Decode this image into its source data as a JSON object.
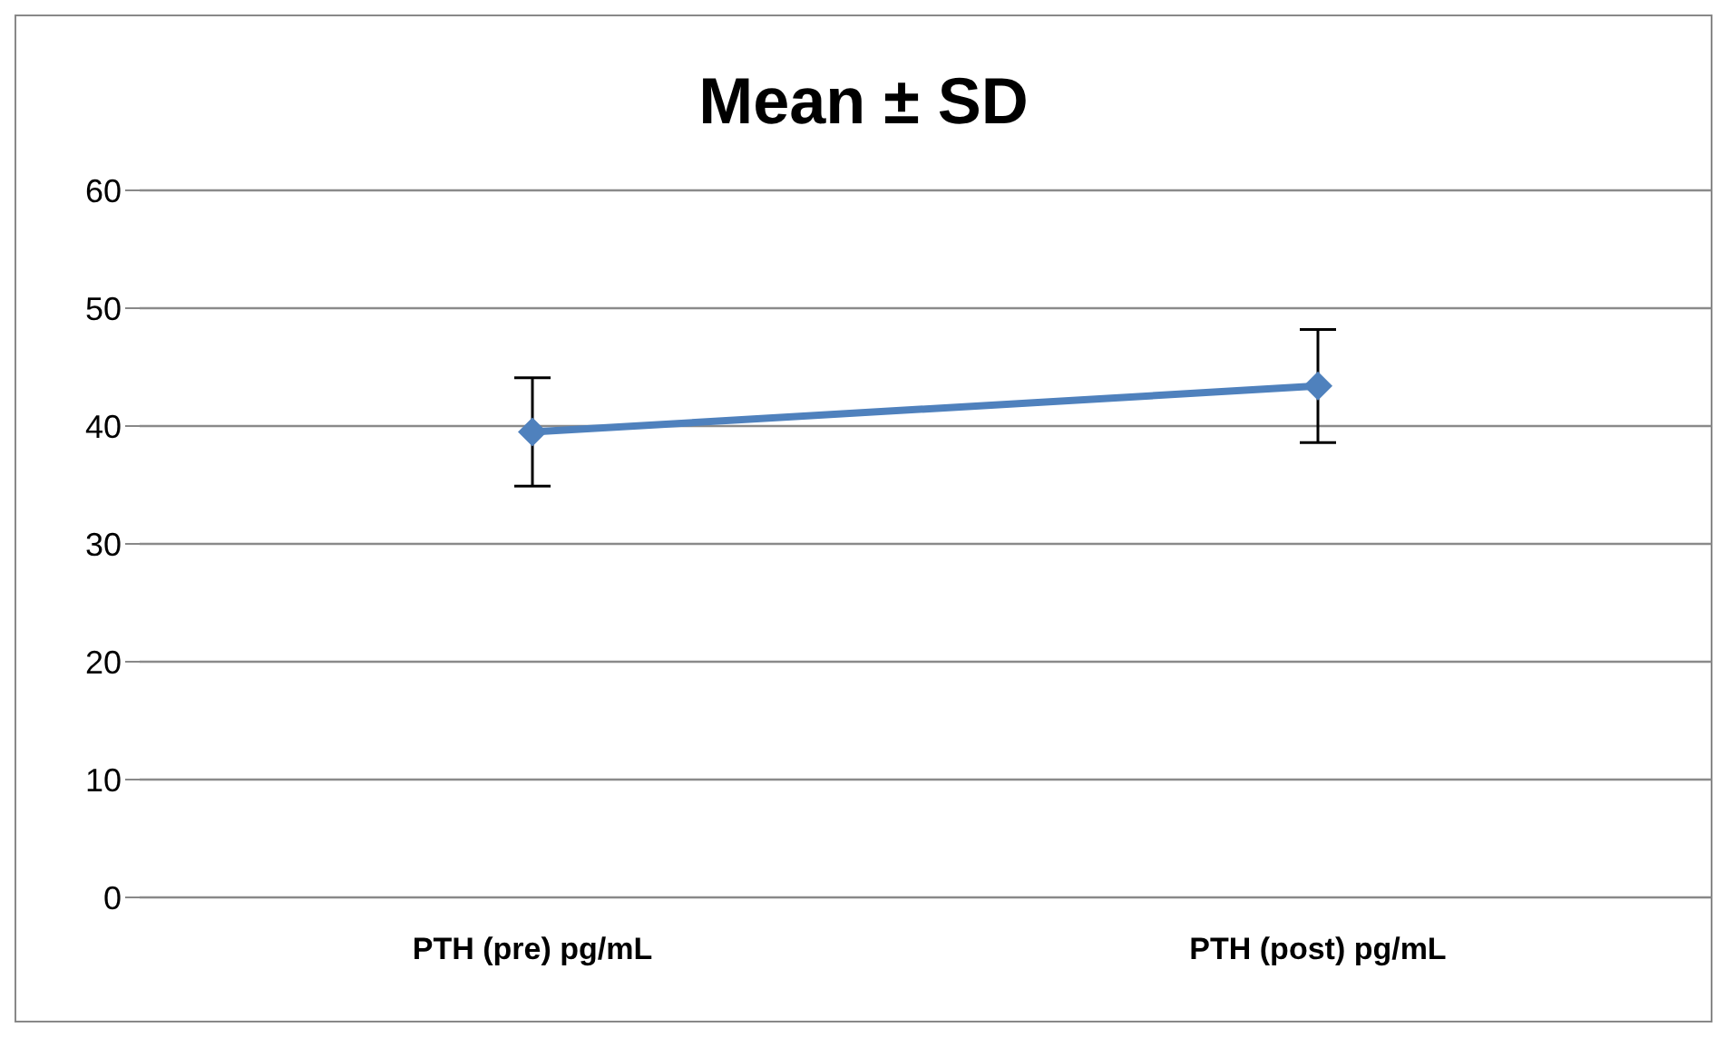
{
  "chart_data": {
    "type": "line",
    "title": "Mean ± SD",
    "categories": [
      "PTH (pre) pg/mL",
      "PTH (post) pg/mL"
    ],
    "series": [
      {
        "color": "#4f81bd",
        "values": [
          39.5,
          43.4
        ],
        "errors": [
          4.6,
          4.8
        ]
      }
    ],
    "ylim": [
      0,
      60
    ],
    "yticks": [
      0,
      10,
      20,
      30,
      40,
      50,
      60
    ],
    "grid": "y",
    "marker": "diamond",
    "line_style": "solid"
  }
}
